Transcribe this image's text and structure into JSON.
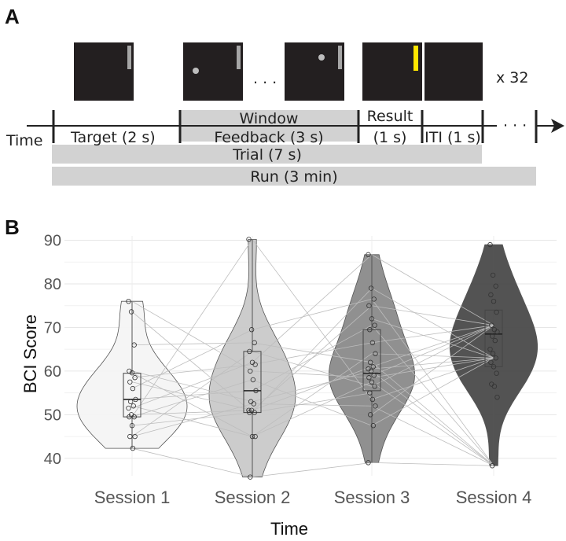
{
  "panels": {
    "a": "A",
    "b": "B"
  },
  "schematic": {
    "repeat": "x 32",
    "ellipsis1": ". . .",
    "ellipsis2": "· · ·",
    "time": "Time",
    "target": "Target (2 s)",
    "window": "Window",
    "feedback": "Feedback (3 s)",
    "result": "Result",
    "result_dur": "(1 s)",
    "iti": "ITI (1 s)",
    "trial": "Trial (7 s)",
    "run": "Run (3 min)",
    "colors": {
      "screen": "#231f20",
      "bar": "#a6a6a6",
      "result_bar": "#ffe600",
      "ball": "#bdbdbd",
      "band": "#d2d2d2"
    }
  },
  "chart_data": {
    "type": "violin",
    "xlabel": "Time",
    "ylabel": "BCI Score",
    "ylim": [
      36,
      91
    ],
    "yticks": [
      40,
      50,
      60,
      70,
      80,
      90
    ],
    "categories": [
      "Session 1",
      "Session 2",
      "Session 3",
      "Session 4"
    ],
    "fill_colors": [
      "#f4f4f4",
      "#c9c9c9",
      "#8a8a8a",
      "#4a4a4a"
    ],
    "grid": true,
    "box": [
      {
        "q1": 49.5,
        "median": 53.5,
        "q3": 59.5,
        "whisker_low": 42.3,
        "whisker_high": 76.0
      },
      {
        "q1": 50.5,
        "median": 55.5,
        "q3": 64.5,
        "whisker_low": 35.7,
        "whisker_high": 90.2
      },
      {
        "q1": 55.5,
        "median": 59.5,
        "q3": 69.5,
        "whisker_low": 39.0,
        "whisker_high": 86.7
      },
      {
        "q1": 61.0,
        "median": 68.5,
        "q3": 74.0,
        "whisker_low": 38.3,
        "whisker_high": 89.0
      }
    ],
    "points": [
      [
        76.0,
        73.6,
        66.0,
        60.0,
        59.6,
        58.5,
        57.5,
        56.0,
        53.5,
        53.0,
        52.0,
        51.5,
        50.0,
        49.5,
        49.5,
        47.5,
        45.0,
        45.0,
        42.3
      ],
      [
        90.2,
        69.5,
        66.5,
        64.5,
        62.0,
        61.5,
        60.0,
        58.0,
        55.5,
        53.0,
        52.5,
        51.0,
        51.0,
        50.5,
        50.5,
        45.0,
        45.0,
        35.7
      ],
      [
        86.7,
        79.0,
        76.5,
        75.0,
        72.0,
        70.5,
        69.5,
        66.5,
        64.0,
        62.0,
        61.0,
        60.5,
        60.0,
        59.0,
        58.5,
        57.5,
        56.5,
        55.0,
        53.5,
        52.0,
        50.0,
        47.5,
        39.0
      ],
      [
        89.0,
        82.0,
        79.5,
        77.5,
        76.0,
        73.5,
        70.5,
        69.5,
        69.0,
        68.0,
        67.0,
        65.0,
        64.0,
        63.0,
        62.0,
        61.0,
        59.5,
        57.0,
        56.5,
        54.0,
        38.3
      ]
    ]
  }
}
